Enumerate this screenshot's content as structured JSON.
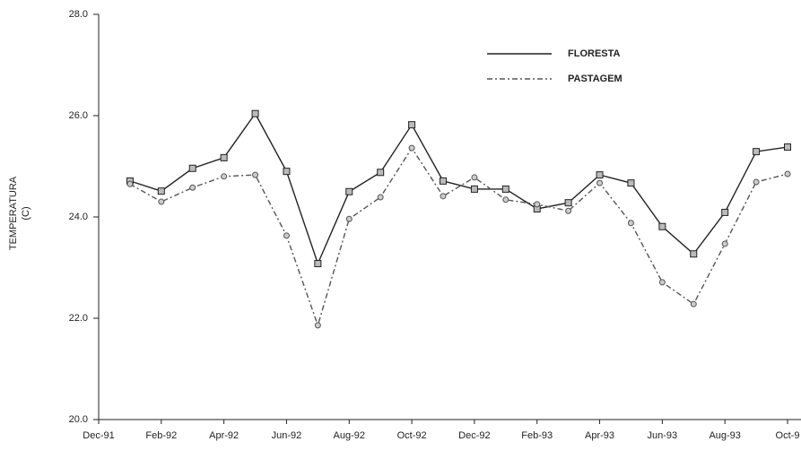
{
  "chart_data": {
    "type": "line",
    "y_label": [
      "TEMPERATURA",
      "(C)"
    ],
    "categories": [
      "Dec-91",
      null,
      "Feb-92",
      null,
      "Apr-92",
      null,
      "Jun-92",
      null,
      "Aug-92",
      null,
      "Oct-92",
      null,
      "Dec-92",
      null,
      "Feb-93",
      null,
      "Apr-93",
      null,
      "Jun-93",
      null,
      "Aug-93",
      null,
      "Oct-9"
    ],
    "series": [
      {
        "name": "FLORESTA",
        "color": "#222222",
        "dash": "none",
        "marker": "square",
        "values": [
          null,
          24.71,
          24.51,
          24.96,
          25.17,
          26.04,
          24.9,
          23.08,
          24.5,
          24.88,
          25.82,
          24.71,
          24.55,
          24.55,
          24.16,
          24.28,
          24.83,
          24.67,
          23.81,
          23.27,
          24.09,
          25.29,
          25.38
        ]
      },
      {
        "name": "PASTAGEM",
        "color": "#555555",
        "dash": "6 3 2 3",
        "marker": "circle",
        "values": [
          null,
          24.65,
          24.3,
          24.58,
          24.8,
          24.83,
          23.63,
          21.86,
          23.96,
          24.39,
          25.36,
          24.41,
          24.78,
          24.34,
          24.25,
          24.12,
          24.67,
          23.88,
          22.71,
          22.28,
          23.47,
          24.69,
          24.85
        ]
      }
    ],
    "ylim": [
      20,
      28
    ],
    "yticks": [
      {
        "value": 20,
        "label": "20.0"
      },
      {
        "value": 22,
        "label": "22.0"
      },
      {
        "value": 24,
        "label": "24.0"
      },
      {
        "value": 26,
        "label": "26.0"
      },
      {
        "value": 28,
        "label": "28.0"
      }
    ]
  }
}
